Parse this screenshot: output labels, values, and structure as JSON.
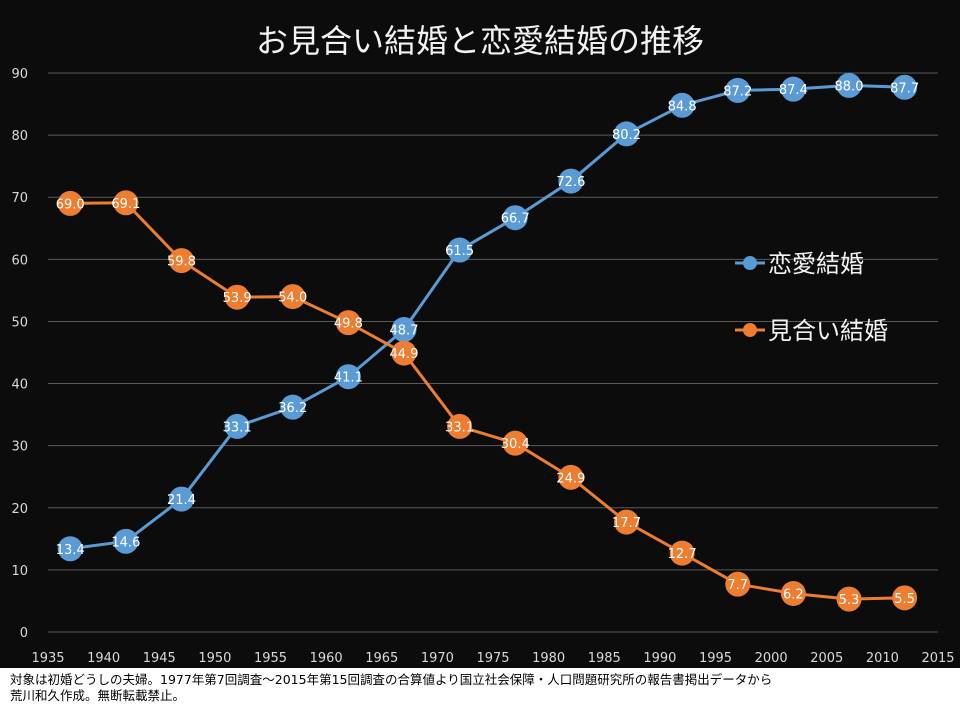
{
  "colors": {
    "background": "#0c0c0c",
    "gridline": "#595959",
    "axis_text": "#d9d9d9",
    "title": "#f2f2f2",
    "ren_ai": "#5b9bd5",
    "miai": "#ed7d31",
    "point_label": "#ffffff"
  },
  "footnote": {
    "line1": "対象は初婚どうしの夫婦。1977年第7回調査〜2015年第15回調査の合算値より国立社会保障・人口問題研究所の報告書掲出データから",
    "line2": "荒川和久作成。無断転載禁止。"
  },
  "chart_data": {
    "type": "line",
    "title": "お見合い結婚と恋愛結婚の推移",
    "xlabel": "",
    "ylabel": "",
    "xlim": [
      1935,
      2015
    ],
    "ylim": [
      0,
      90
    ],
    "x_ticks": [
      1935,
      1940,
      1945,
      1950,
      1955,
      1960,
      1965,
      1970,
      1975,
      1980,
      1985,
      1990,
      1995,
      2000,
      2005,
      2010,
      2015
    ],
    "y_ticks": [
      0,
      10,
      20,
      30,
      40,
      50,
      60,
      70,
      80,
      90
    ],
    "grid": "horizontal",
    "legend_position": "right",
    "x": [
      1937,
      1942,
      1947,
      1952,
      1957,
      1962,
      1967,
      1972,
      1977,
      1982,
      1987,
      1992,
      1997,
      2002,
      2007,
      2012
    ],
    "series": [
      {
        "name": "恋愛結婚",
        "color": "#5b9bd5",
        "values": [
          13.4,
          14.6,
          21.4,
          33.1,
          36.2,
          41.1,
          48.7,
          61.5,
          66.7,
          72.6,
          80.2,
          84.8,
          87.2,
          87.4,
          88.0,
          87.7
        ],
        "labels": [
          "13.4",
          "14.6",
          "21.4",
          "33.1",
          "36.2",
          "41.1",
          "48.7",
          "61.5",
          "66.7",
          "72.6",
          "80.2",
          "84.8",
          "87.2",
          "87.4",
          "88.0",
          "87.7"
        ]
      },
      {
        "name": "見合い結婚",
        "color": "#ed7d31",
        "values": [
          69.0,
          69.1,
          59.8,
          53.9,
          54.0,
          49.8,
          44.9,
          33.1,
          30.4,
          24.9,
          17.7,
          12.7,
          7.7,
          6.2,
          5.3,
          5.5
        ],
        "labels": [
          "69.0",
          "69.1",
          "59.8",
          "53.9",
          "54.0",
          "49.8",
          "44.9",
          "33.1",
          "30.4",
          "24.9",
          "17.7",
          "12.7",
          "7.7",
          "6.2",
          "5.3",
          "5.5"
        ]
      }
    ]
  }
}
